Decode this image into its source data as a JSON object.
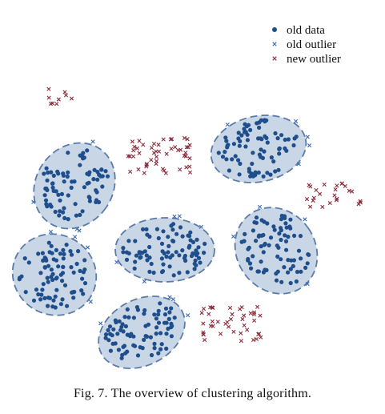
{
  "legend": {
    "old_data": "old data",
    "old_outlier": "old outlier",
    "new_outlier": "new outlier"
  },
  "caption": "Fig. 7.  The overview of clustering algorithm.",
  "colors": {
    "old_data": "#1f4e8c",
    "old_outlier": "#3a6ab5",
    "new_outlier": "#8b2c3c",
    "cluster_fill": "#c9d6e6",
    "cluster_border": "#5b7ba8"
  },
  "icons": {
    "old_data_marker": "filled-circle",
    "old_outlier_marker": "x-cross",
    "new_outlier_marker": "x-cross"
  }
}
